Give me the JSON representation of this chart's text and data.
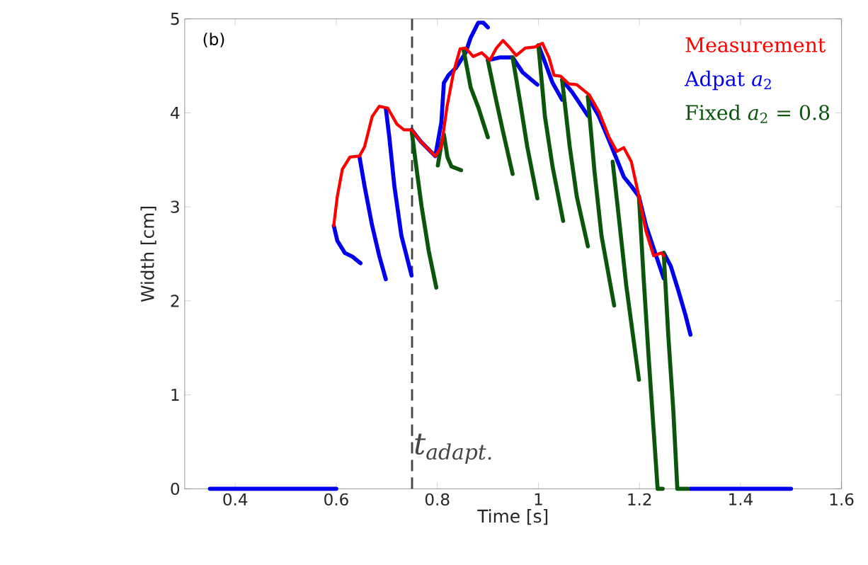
{
  "chart_data": {
    "type": "line",
    "xlabel": "Time [s]",
    "ylabel": "Width [cm]",
    "annotations": [
      "(b)"
    ],
    "xlim": [
      0.3,
      1.6
    ],
    "ylim": [
      0,
      5
    ],
    "xticks": [
      0.4,
      0.6,
      0.8,
      1,
      1.2,
      1.4,
      1.6
    ],
    "yticks": [
      0,
      1,
      2,
      3,
      4,
      5
    ],
    "grid": false,
    "legend": "top right",
    "ref_lines": [
      {
        "axis": "x",
        "value": 0.75,
        "label": "t$_{adapt.}$",
        "color": "#444444",
        "line_style": "dashed"
      }
    ],
    "series": [
      {
        "name": "Measurement",
        "color": "#ff0000",
        "x": [
          0.595,
          0.602,
          0.612,
          0.627,
          0.646,
          0.656,
          0.671,
          0.685,
          0.702,
          0.72,
          0.734,
          0.749,
          0.768,
          0.796,
          0.808,
          0.819,
          0.832,
          0.845,
          0.856,
          0.871,
          0.888,
          0.904,
          0.917,
          0.93,
          0.944,
          0.956,
          0.974,
          0.993,
          1.008,
          1.021,
          1.031,
          1.044,
          1.06,
          1.076,
          1.101,
          1.12,
          1.14,
          1.155,
          1.169,
          1.184,
          1.199,
          1.213,
          1.228,
          1.243,
          1.248
        ],
        "values": [
          2.8,
          3.11,
          3.4,
          3.53,
          3.54,
          3.64,
          3.96,
          4.07,
          4.05,
          3.88,
          3.82,
          3.82,
          3.69,
          3.54,
          3.64,
          4.06,
          4.43,
          4.68,
          4.69,
          4.6,
          4.64,
          4.56,
          4.69,
          4.77,
          4.69,
          4.61,
          4.69,
          4.7,
          4.74,
          4.59,
          4.4,
          4.39,
          4.31,
          4.3,
          4.19,
          4.01,
          3.74,
          3.59,
          3.63,
          3.48,
          3.11,
          2.74,
          2.48,
          2.51,
          2.48
        ]
      },
      {
        "name": "Adpat *a*$_{2}$",
        "color": "#0000ee",
        "x": [
          0.35,
          0.6
        ],
        "values": [
          0,
          0
        ]
      },
      {
        "color": "#0000ee",
        "x": [
          0.595,
          0.602,
          0.617,
          0.632,
          0.648
        ],
        "values": [
          2.8,
          2.64,
          2.51,
          2.47,
          2.4
        ]
      },
      {
        "color": "#0000ee",
        "x": [
          0.646,
          0.656,
          0.671,
          0.685,
          0.698
        ],
        "values": [
          3.53,
          3.22,
          2.8,
          2.48,
          2.23
        ]
      },
      {
        "color": "#0000ee",
        "x": [
          0.698,
          0.705,
          0.715,
          0.729,
          0.749
        ],
        "values": [
          4.05,
          3.74,
          3.22,
          2.69,
          2.27
        ]
      },
      {
        "color": "#0000ee",
        "x": [
          0.749,
          0.768,
          0.796,
          0.808,
          0.813,
          0.822,
          0.837,
          0.856,
          0.866,
          0.881,
          0.891,
          0.9
        ],
        "values": [
          3.82,
          3.69,
          3.54,
          3.9,
          4.32,
          4.4,
          4.48,
          4.64,
          4.8,
          4.96,
          4.96,
          4.91
        ]
      },
      {
        "color": "#0000ee",
        "x": [
          0.9,
          0.925,
          0.949,
          0.969,
          0.998
        ],
        "values": [
          4.56,
          4.59,
          4.59,
          4.43,
          4.3
        ]
      },
      {
        "color": "#0000ee",
        "x": [
          1.0,
          1.013,
          1.028,
          1.047
        ],
        "values": [
          4.72,
          4.54,
          4.32,
          4.14
        ]
      },
      {
        "color": "#0000ee",
        "x": [
          1.047,
          1.067,
          1.098
        ],
        "values": [
          4.35,
          4.22,
          3.97
        ]
      },
      {
        "color": "#0000ee",
        "x": [
          1.098,
          1.12,
          1.145,
          1.169,
          1.184,
          1.199,
          1.213,
          1.233,
          1.248
        ],
        "values": [
          4.17,
          3.96,
          3.64,
          3.32,
          3.22,
          3.11,
          2.8,
          2.48,
          2.24
        ]
      },
      {
        "color": "#0000ee",
        "x": [
          1.248,
          1.262,
          1.277,
          1.291,
          1.301
        ],
        "values": [
          2.51,
          2.37,
          2.11,
          1.85,
          1.64
        ]
      },
      {
        "color": "#0000ee",
        "x": [
          1.3,
          1.5
        ],
        "values": [
          0,
          0
        ]
      },
      {
        "name": "Fixed *a*$_{2}$ = 0.8",
        "color": "#0b560b",
        "x": [
          0.749,
          0.757,
          0.769,
          0.783,
          0.798
        ],
        "values": [
          3.82,
          3.48,
          3.0,
          2.53,
          2.14
        ]
      },
      {
        "color": "#0b560b",
        "x": [
          0.801,
          0.808,
          0.813,
          0.82,
          0.828,
          0.847
        ],
        "values": [
          3.44,
          3.67,
          3.77,
          3.53,
          3.43,
          3.39
        ]
      },
      {
        "color": "#0b560b",
        "x": [
          0.852,
          0.866,
          0.881,
          0.9
        ],
        "values": [
          4.67,
          4.27,
          4.06,
          3.74
        ]
      },
      {
        "color": "#0b560b",
        "x": [
          0.9,
          0.915,
          0.93,
          0.949
        ],
        "values": [
          4.56,
          4.17,
          3.8,
          3.35
        ]
      },
      {
        "color": "#0b560b",
        "x": [
          0.949,
          0.964,
          0.978,
          0.998
        ],
        "values": [
          4.59,
          4.11,
          3.64,
          3.09
        ]
      },
      {
        "color": "#0b560b",
        "x": [
          1.0,
          1.013,
          1.028,
          1.049
        ],
        "values": [
          4.72,
          3.96,
          3.43,
          2.85
        ]
      },
      {
        "color": "#0b560b",
        "x": [
          1.047,
          1.062,
          1.076,
          1.098
        ],
        "values": [
          4.35,
          3.64,
          3.11,
          2.58
        ]
      },
      {
        "color": "#0b560b",
        "x": [
          1.098,
          1.111,
          1.125,
          1.15
        ],
        "values": [
          4.17,
          3.38,
          2.69,
          1.95
        ]
      },
      {
        "color": "#0b560b",
        "x": [
          1.147,
          1.16,
          1.174,
          1.199
        ],
        "values": [
          3.48,
          2.85,
          2.16,
          1.16
        ]
      },
      {
        "color": "#0b560b",
        "x": [
          1.199,
          1.208,
          1.218,
          1.236,
          1.246
        ],
        "values": [
          3.11,
          2.27,
          1.42,
          0,
          0
        ]
      },
      {
        "color": "#0b560b",
        "x": [
          1.248,
          1.257,
          1.267,
          1.275,
          1.296
        ],
        "values": [
          2.51,
          1.64,
          0.84,
          0,
          0
        ]
      }
    ]
  }
}
